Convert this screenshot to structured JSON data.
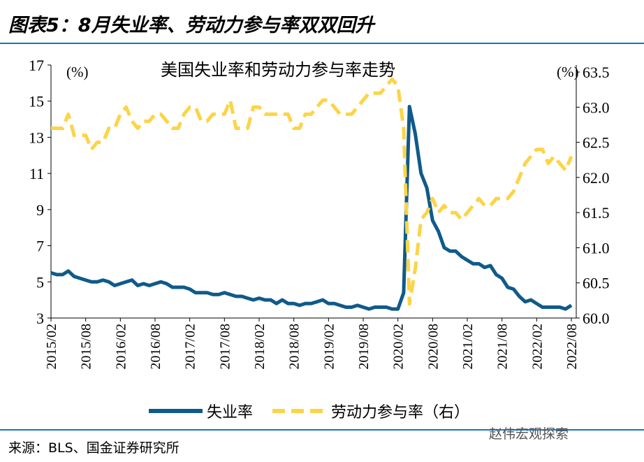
{
  "title": "图表5：8月失业率、劳动力参与率双双回升",
  "source": "来源：BLS、国金证券研究所",
  "watermark": "赵伟宏观探索",
  "chart_data": {
    "type": "line",
    "title": "美国失业率和劳动力参与率走势",
    "left_unit": "(%)",
    "right_unit": "(%)",
    "ylim_left": [
      3,
      17
    ],
    "yticks_left": [
      "3",
      "5",
      "7",
      "9",
      "11",
      "13",
      "15",
      "17"
    ],
    "ylim_right": [
      60.0,
      63.6
    ],
    "yticks_right": [
      "60.0",
      "60.5",
      "61.0",
      "61.5",
      "62.0",
      "62.5",
      "63.0",
      "63.5"
    ],
    "x_start": "2015/02",
    "xtick_labels": [
      "2015/02",
      "2015/08",
      "2016/02",
      "2016/08",
      "2017/02",
      "2017/08",
      "2018/02",
      "2018/08",
      "2019/02",
      "2019/08",
      "2020/02",
      "2020/08",
      "2021/02",
      "2021/08",
      "2022/02",
      "2022/08"
    ],
    "series": [
      {
        "name": "失业率",
        "axis": "left",
        "color": "#0f5a8a",
        "style": "solid",
        "values": [
          5.5,
          5.4,
          5.4,
          5.6,
          5.3,
          5.2,
          5.1,
          5.0,
          5.0,
          5.1,
          5.0,
          4.8,
          4.9,
          5.0,
          5.1,
          4.8,
          4.9,
          4.8,
          4.9,
          5.0,
          4.9,
          4.7,
          4.7,
          4.7,
          4.6,
          4.4,
          4.4,
          4.4,
          4.3,
          4.3,
          4.4,
          4.3,
          4.2,
          4.2,
          4.1,
          4.0,
          4.1,
          4.0,
          4.0,
          3.8,
          4.0,
          3.8,
          3.8,
          3.7,
          3.8,
          3.8,
          3.9,
          4.0,
          3.8,
          3.8,
          3.7,
          3.6,
          3.6,
          3.7,
          3.6,
          3.5,
          3.6,
          3.6,
          3.6,
          3.5,
          3.5,
          4.4,
          14.7,
          13.2,
          11.0,
          10.2,
          8.4,
          7.8,
          6.9,
          6.7,
          6.7,
          6.4,
          6.2,
          6.0,
          6.0,
          5.8,
          5.9,
          5.4,
          5.2,
          4.7,
          4.6,
          4.2,
          3.9,
          4.0,
          3.8,
          3.6,
          3.6,
          3.6,
          3.6,
          3.5,
          3.7
        ]
      },
      {
        "name": "劳动力参与率（右）",
        "axis": "right",
        "color": "#fdd447",
        "style": "dashed",
        "values": [
          62.7,
          62.7,
          62.7,
          62.9,
          62.6,
          62.6,
          62.6,
          62.4,
          62.5,
          62.5,
          62.7,
          62.7,
          62.9,
          63.0,
          62.8,
          62.7,
          62.8,
          62.8,
          62.9,
          62.9,
          62.8,
          62.7,
          62.7,
          62.9,
          63.0,
          63.0,
          62.8,
          62.8,
          62.9,
          62.9,
          62.9,
          63.1,
          62.7,
          62.7,
          62.7,
          63.0,
          63.0,
          62.9,
          62.9,
          62.9,
          62.9,
          62.9,
          62.7,
          62.7,
          62.9,
          62.9,
          63.0,
          63.1,
          63.1,
          63.0,
          62.9,
          62.9,
          62.9,
          63.0,
          63.1,
          63.2,
          63.2,
          63.2,
          63.3,
          63.4,
          63.3,
          62.7,
          60.2,
          60.7,
          61.4,
          61.5,
          61.7,
          61.5,
          61.6,
          61.5,
          61.5,
          61.4,
          61.5,
          61.6,
          61.7,
          61.6,
          61.6,
          61.7,
          61.7,
          61.7,
          61.8,
          62.0,
          62.2,
          62.3,
          62.4,
          62.4,
          62.2,
          62.3,
          62.2,
          62.1,
          62.3
        ]
      }
    ],
    "legend_position": "bottom"
  }
}
